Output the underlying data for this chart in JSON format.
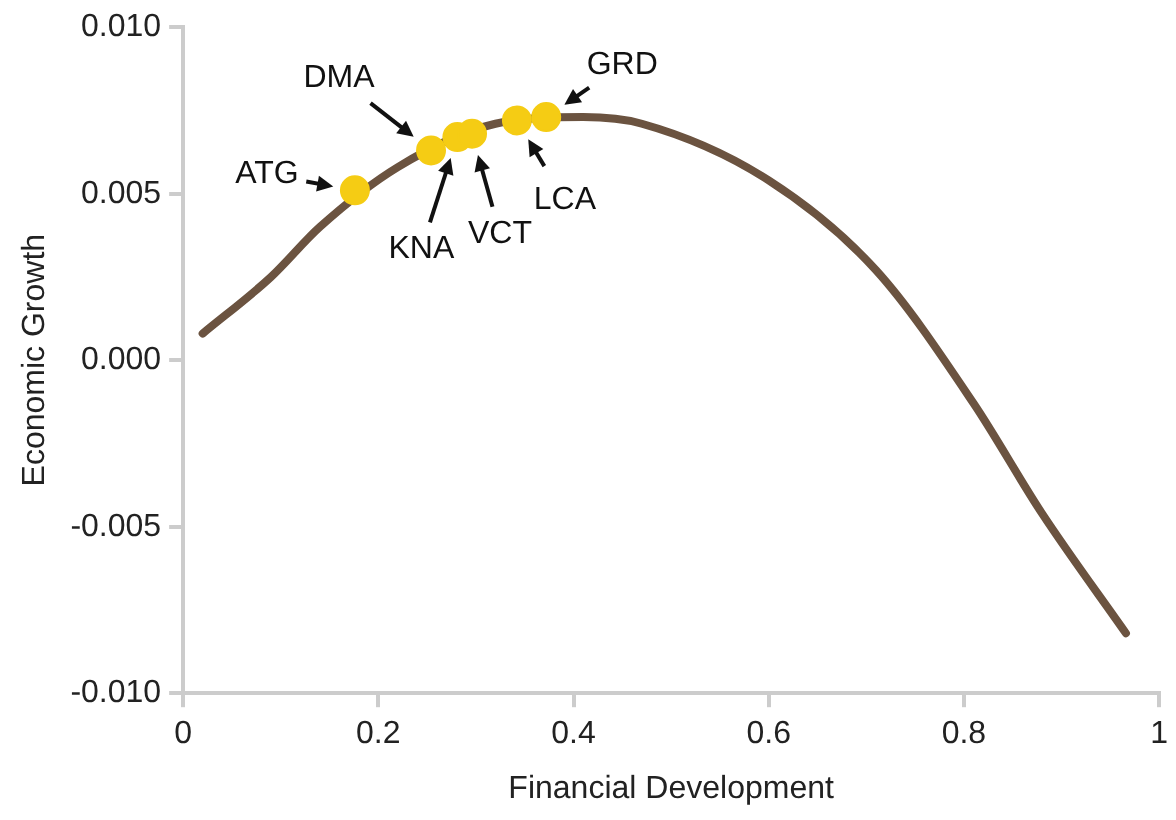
{
  "chart_data": {
    "type": "line",
    "xlabel": "Financial Development",
    "ylabel": "Economic Growth",
    "xlim": [
      0,
      1
    ],
    "xticks": [
      0,
      0.2,
      0.4,
      0.6,
      0.8,
      1
    ],
    "ylim": [
      -0.01,
      0.01
    ],
    "yticks": [
      {
        "value": -0.01,
        "label": "-0.010"
      },
      {
        "value": -0.005,
        "label": "-0.005"
      },
      {
        "value": 0,
        "label": "0.000"
      },
      {
        "value": 0.005,
        "label": "0.005"
      },
      {
        "value": 0.01,
        "label": "0.010"
      }
    ],
    "grid": false,
    "legend": false,
    "series": [
      {
        "color": "#6b5340",
        "marker": "none",
        "line_style": "solid",
        "x": [
          0.02,
          0.09,
          0.14,
          0.22,
          0.32,
          0.41,
          0.47,
          0.6,
          0.71,
          0.81,
          0.88,
          0.966
        ],
        "values": [
          0.0008,
          0.0025,
          0.004,
          0.0058,
          0.0071,
          0.0073,
          0.0071,
          0.0054,
          0.0027,
          -0.0013,
          -0.0046,
          -0.0082
        ]
      },
      {
        "type": "scatter",
        "color": "#f5cc14",
        "marker": "circle",
        "x": [
          0.176,
          0.254,
          0.281,
          0.296,
          0.342,
          0.372
        ],
        "values": [
          0.0051,
          0.0063,
          0.0067,
          0.0068,
          0.0072,
          0.0073
        ]
      }
    ],
    "annotations": [
      {
        "text": "ATG",
        "x": 0.176,
        "y": 0.0051
      },
      {
        "text": "DMA",
        "x": 0.254,
        "y": 0.0063
      },
      {
        "text": "KNA",
        "x": 0.281,
        "y": 0.0067
      },
      {
        "text": "VCT",
        "x": 0.296,
        "y": 0.0068
      },
      {
        "text": "LCA",
        "x": 0.342,
        "y": 0.0072
      },
      {
        "text": "GRD",
        "x": 0.372,
        "y": 0.0073
      }
    ]
  }
}
